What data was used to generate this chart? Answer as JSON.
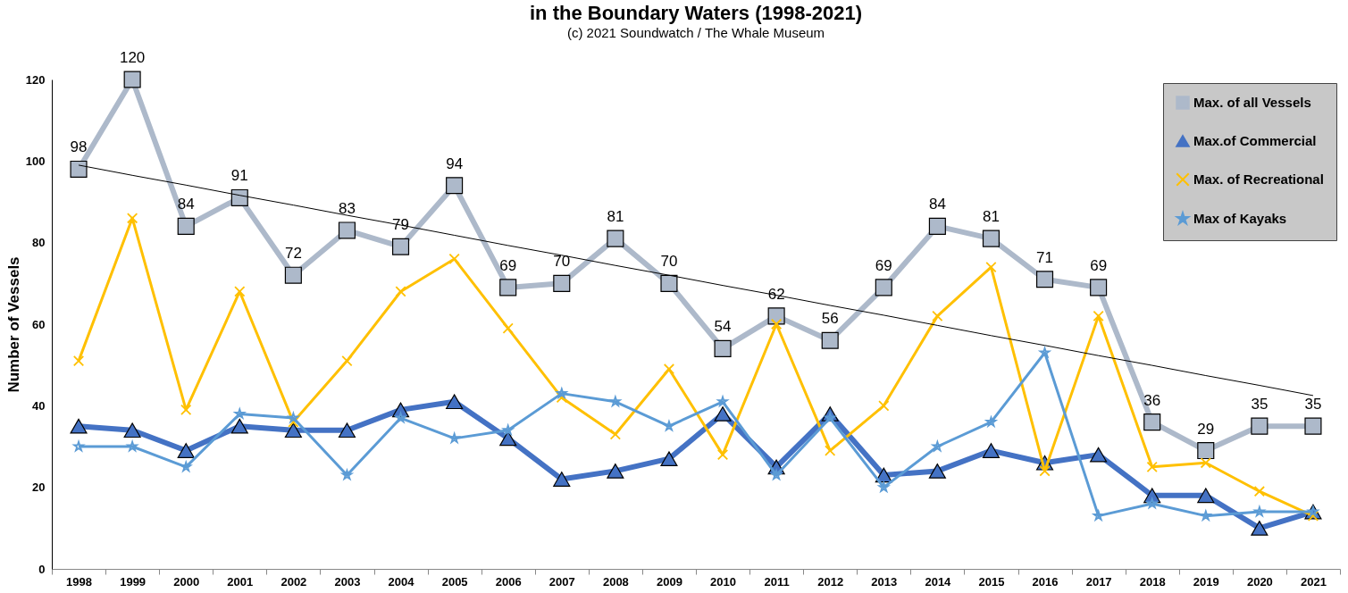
{
  "chart_data": {
    "type": "line",
    "title": "in the Boundary Waters (1998-2021)",
    "subtitle": "(c) 2021 Soundwatch / The Whale Museum",
    "ylabel": "Number of Vessels",
    "categories": [
      "1998",
      "1999",
      "2000",
      "2001",
      "2002",
      "2003",
      "2004",
      "2005",
      "2006",
      "2007",
      "2008",
      "2009",
      "2010",
      "2011",
      "2012",
      "2013",
      "2014",
      "2015",
      "2016",
      "2017",
      "2018",
      "2019",
      "2020",
      "2021"
    ],
    "ylim": [
      0,
      120
    ],
    "yticks": [
      0,
      20,
      40,
      60,
      80,
      100,
      120
    ],
    "grid": false,
    "legend": "top right",
    "series": [
      {
        "name": "Max. of all Vessels",
        "color": "#adb9ca",
        "marker": "square",
        "values": [
          98,
          120,
          84,
          91,
          72,
          83,
          79,
          94,
          69,
          70,
          81,
          70,
          54,
          62,
          56,
          69,
          84,
          81,
          71,
          69,
          36,
          29,
          35,
          35
        ],
        "value_labels": [
          "98",
          "120",
          "84",
          "91",
          "72",
          "83",
          "79",
          "94",
          "69",
          "70",
          "81",
          "70",
          "54",
          "62",
          "56",
          "69",
          "84",
          "81",
          "71",
          "69",
          "36",
          "29",
          "35",
          "35"
        ]
      },
      {
        "name": "Max.of Commercial",
        "color": "#4472c4",
        "marker": "triangle",
        "values": [
          35,
          34,
          29,
          35,
          34,
          34,
          39,
          41,
          32,
          22,
          24,
          27,
          38,
          25,
          38,
          23,
          24,
          29,
          26,
          28,
          18,
          18,
          10,
          14
        ]
      },
      {
        "name": "Max. of Recreational",
        "color": "#ffc000",
        "marker": "cross",
        "values": [
          51,
          86,
          39,
          68,
          36,
          51,
          68,
          76,
          59,
          42,
          33,
          49,
          28,
          60,
          29,
          40,
          62,
          74,
          24,
          62,
          25,
          26,
          19,
          13
        ]
      },
      {
        "name": "Max of Kayaks",
        "color": "#5b9bd5",
        "marker": "star",
        "values": [
          30,
          30,
          25,
          38,
          37,
          23,
          37,
          32,
          34,
          43,
          41,
          35,
          41,
          23,
          37,
          20,
          30,
          36,
          53,
          13,
          16,
          13,
          14,
          14
        ]
      },
      {
        "type": "line",
        "color": "#000000",
        "marker": "none",
        "values": [
          99,
          96.5,
          94.1,
          91.6,
          89.2,
          86.7,
          84.3,
          81.8,
          79.3,
          76.9,
          74.4,
          72.0,
          69.5,
          67.1,
          64.6,
          62.2,
          59.7,
          57.2,
          54.8,
          52.3,
          49.9,
          47.4,
          45.0,
          42.5
        ]
      }
    ]
  }
}
